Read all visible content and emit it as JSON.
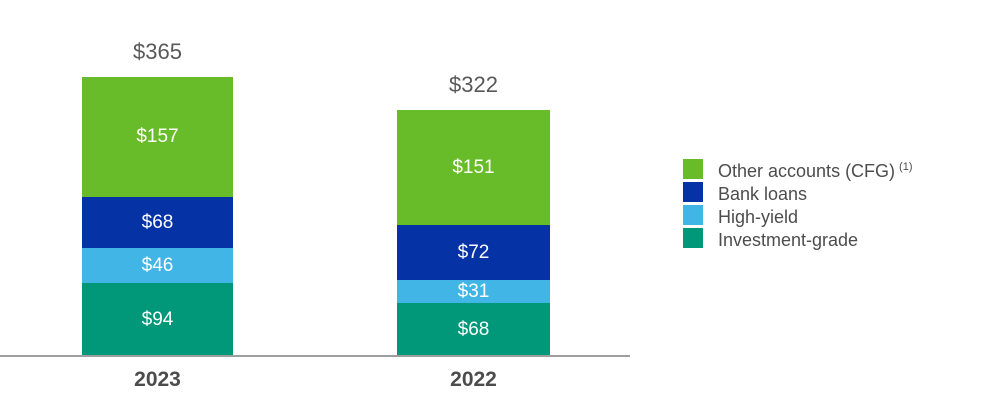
{
  "chart_data": {
    "type": "bar",
    "subtype": "stacked-vertical",
    "title": "",
    "categories": [
      "2023",
      "2022"
    ],
    "totals": [
      365,
      322
    ],
    "value_prefix": "$",
    "series_order": "top-to-bottom",
    "series": [
      {
        "name": "Other accounts (CFG)",
        "color": "#68bb29",
        "values": [
          157,
          151
        ]
      },
      {
        "name": "Bank loans",
        "color": "#0533a5",
        "values": [
          68,
          72
        ]
      },
      {
        "name": "High-yield",
        "color": "#41b5e5",
        "values": [
          46,
          31
        ]
      },
      {
        "name": "Investment-grade",
        "color": "#009879",
        "values": [
          94,
          68
        ]
      }
    ],
    "xlabel": "",
    "ylabel": "",
    "ylim": [
      0,
      365
    ],
    "grid": false,
    "legend_position": "right",
    "baseline_axis_visible": true,
    "value_labels": "inside-segments-white",
    "total_labels": "above-bars-gray"
  },
  "legend": {
    "items": [
      {
        "label": "Other accounts (CFG)",
        "sup": "(1)",
        "color": "#68bb29"
      },
      {
        "label": "Bank loans",
        "sup": "",
        "color": "#0533a5"
      },
      {
        "label": "High-yield",
        "sup": "",
        "color": "#41b5e5"
      },
      {
        "label": "Investment-grade",
        "sup": "",
        "color": "#009879"
      }
    ]
  },
  "colors": {
    "background": "#ffffff",
    "axis_line": "#9e9e9e",
    "total_label_text": "#595959",
    "category_label_text": "#4c4c4c",
    "legend_text": "#4d4d4d",
    "segment_label_text": "#ffffff"
  }
}
